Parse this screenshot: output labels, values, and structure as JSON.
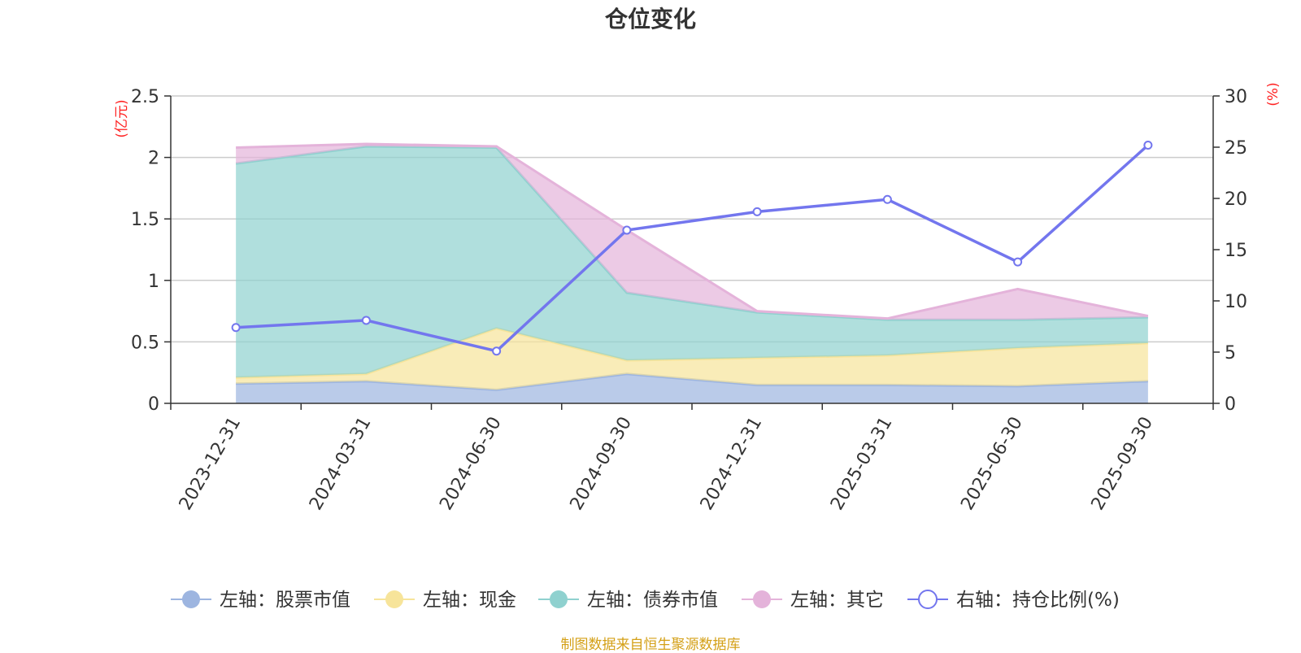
{
  "chart_data": {
    "type": "area",
    "title": "仓位变化",
    "source": "制图数据来自恒生聚源数据库",
    "left_axis": {
      "unit": "(亿元)",
      "min": 0,
      "max": 2.5,
      "ticks": [
        "0",
        "0.5",
        "1",
        "1.5",
        "2",
        "2.5"
      ]
    },
    "right_axis": {
      "unit": "(%)",
      "min": 0,
      "max": 30,
      "ticks": [
        "0",
        "5",
        "10",
        "15",
        "20",
        "25",
        "30"
      ]
    },
    "categories": [
      "2023-12-31",
      "2024-03-31",
      "2024-06-30",
      "2024-09-30",
      "2024-12-31",
      "2025-03-31",
      "2025-06-30",
      "2025-09-30"
    ],
    "stacked_series": [
      {
        "name": "左轴：股票市值",
        "axis": "left",
        "color": "#9db5e0",
        "values": [
          0.16,
          0.18,
          0.11,
          0.24,
          0.15,
          0.15,
          0.14,
          0.18
        ]
      },
      {
        "name": "左轴：现金",
        "axis": "left",
        "color": "#f7e49a",
        "values": [
          0.05,
          0.06,
          0.5,
          0.11,
          0.22,
          0.24,
          0.31,
          0.31
        ]
      },
      {
        "name": "左轴：债券市值",
        "axis": "left",
        "color": "#8fd1cf",
        "values": [
          1.74,
          1.85,
          1.47,
          0.55,
          0.37,
          0.29,
          0.23,
          0.21
        ]
      },
      {
        "name": "左轴：其它",
        "axis": "left",
        "color": "#e4b3da",
        "values": [
          0.13,
          0.02,
          0.01,
          0.51,
          0.01,
          0.01,
          0.25,
          0.01
        ]
      }
    ],
    "line_series": {
      "name": "右轴：持仓比例(%)",
      "axis": "right",
      "color": "#7376ee",
      "values": [
        7.4,
        8.1,
        5.1,
        16.9,
        18.7,
        19.9,
        13.8,
        25.2
      ]
    }
  }
}
